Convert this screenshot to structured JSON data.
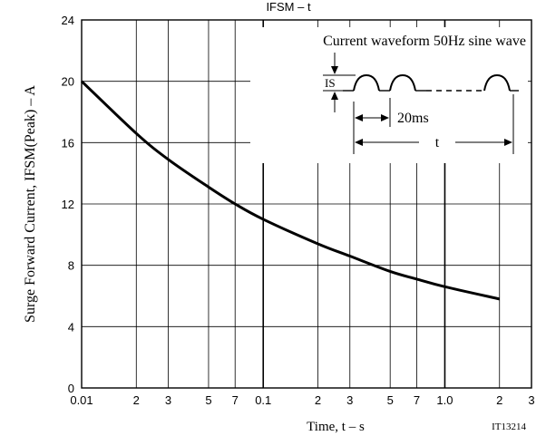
{
  "chart_data": {
    "type": "line",
    "title": "IFSM – t",
    "xlabel": "Time, t – s",
    "ylabel": "Surge Forward Current, IFSM(Peak) – A",
    "x_scale": "log",
    "xlim": [
      0.01,
      3
    ],
    "ylim": [
      0,
      24
    ],
    "grid": true,
    "x_ticks": [
      {
        "value": 0.01,
        "label": "0.01"
      },
      {
        "value": 0.02,
        "label": "2"
      },
      {
        "value": 0.03,
        "label": "3"
      },
      {
        "value": 0.05,
        "label": "5"
      },
      {
        "value": 0.07,
        "label": "7"
      },
      {
        "value": 0.1,
        "label": "0.1"
      },
      {
        "value": 0.2,
        "label": "2"
      },
      {
        "value": 0.3,
        "label": "3"
      },
      {
        "value": 0.5,
        "label": "5"
      },
      {
        "value": 0.7,
        "label": "7"
      },
      {
        "value": 1.0,
        "label": "1.0"
      },
      {
        "value": 2,
        "label": "2"
      },
      {
        "value": 3,
        "label": "3"
      }
    ],
    "y_ticks": [
      0,
      4,
      8,
      12,
      16,
      20,
      24
    ],
    "series": [
      {
        "x": [
          0.01,
          0.02,
          0.03,
          0.05,
          0.07,
          0.1,
          0.2,
          0.3,
          0.5,
          0.7,
          1.0,
          2.0
        ],
        "y": [
          20.0,
          16.6,
          14.9,
          13.1,
          12.0,
          11.0,
          9.4,
          8.6,
          7.6,
          7.1,
          6.6,
          5.8
        ]
      }
    ],
    "annotations": {
      "waveform_title": "Current waveform 50Hz sine wave",
      "is_label": "IS",
      "period_label": "20ms",
      "t_label": "t"
    },
    "figure_id": "IT13214"
  }
}
